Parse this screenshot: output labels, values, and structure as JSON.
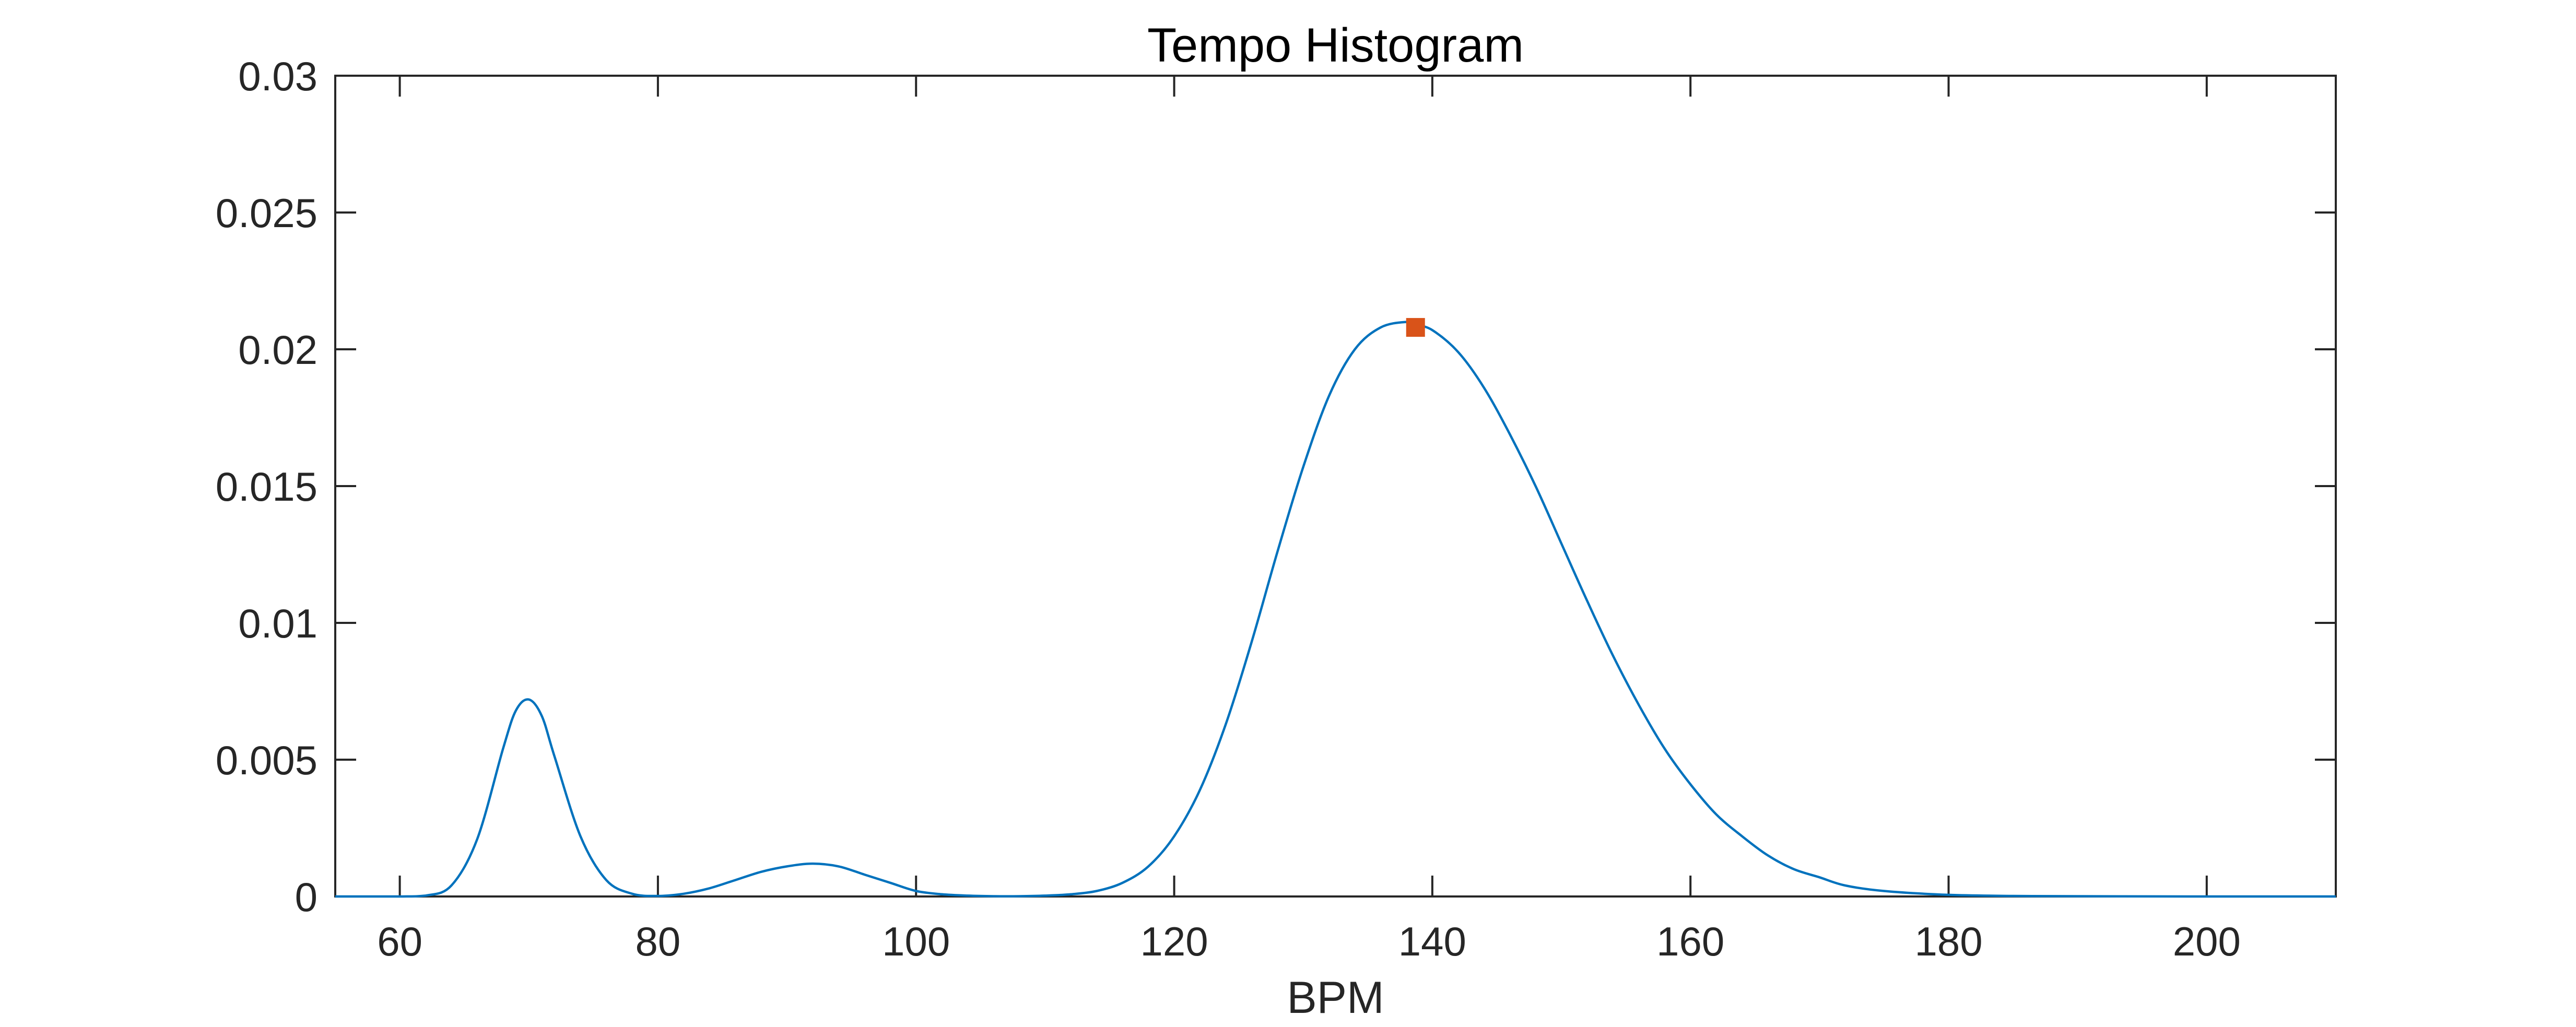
{
  "chart_data": {
    "type": "line",
    "title": "Tempo Histogram",
    "xlabel": "BPM",
    "ylabel": "",
    "xlim": [
      55,
      210
    ],
    "ylim": [
      0,
      0.03
    ],
    "xticks": [
      60,
      80,
      100,
      120,
      140,
      160,
      180,
      200
    ],
    "yticks": [
      0,
      0.005,
      0.01,
      0.015,
      0.02,
      0.025,
      0.03
    ],
    "xtick_labels": [
      "60",
      "80",
      "100",
      "120",
      "140",
      "160",
      "180",
      "200"
    ],
    "ytick_labels": [
      "0",
      "0.005",
      "0.01",
      "0.015",
      "0.02",
      "0.025",
      "0.03"
    ],
    "grid": false,
    "series": [
      {
        "color": "#0072BD",
        "x": [
          55,
          60,
          62,
          64,
          66,
          68,
          69,
          70,
          71,
          72,
          74,
          76,
          78,
          80,
          82,
          84,
          86,
          88,
          90,
          92,
          94,
          96,
          98,
          100,
          102,
          104,
          106,
          108,
          110,
          112,
          114,
          116,
          118,
          120,
          122,
          124,
          126,
          128,
          130,
          132,
          134,
          136,
          138,
          138.7,
          140,
          142,
          144,
          146,
          148,
          150,
          152,
          154,
          156,
          158,
          160,
          162,
          164,
          166,
          168,
          170,
          172,
          175,
          180,
          185,
          190,
          200,
          210
        ],
        "y": [
          0,
          0,
          3e-05,
          0.0004,
          0.0021,
          0.0054,
          0.0068,
          0.0072,
          0.0066,
          0.0051,
          0.0022,
          0.0006,
          0.0001,
          2e-05,
          0.0001,
          0.0003,
          0.0006,
          0.0009,
          0.0011,
          0.0012,
          0.0011,
          0.0008,
          0.0005,
          0.0002,
          8e-05,
          3e-05,
          1e-05,
          1e-05,
          3e-05,
          8e-05,
          0.0002,
          0.0005,
          0.0011,
          0.0022,
          0.0039,
          0.0063,
          0.0093,
          0.0126,
          0.0157,
          0.0183,
          0.02,
          0.0208,
          0.021,
          0.0209,
          0.0207,
          0.0199,
          0.0186,
          0.0169,
          0.015,
          0.0129,
          0.0108,
          0.0088,
          0.007,
          0.0054,
          0.0041,
          0.003,
          0.0022,
          0.0015,
          0.001,
          0.0007,
          0.0004,
          0.0002,
          6e-05,
          2e-05,
          1e-05,
          0,
          0
        ]
      }
    ],
    "marker": {
      "x": 138.7,
      "y": 0.0208,
      "shape": "square",
      "color": "#D95319"
    }
  }
}
